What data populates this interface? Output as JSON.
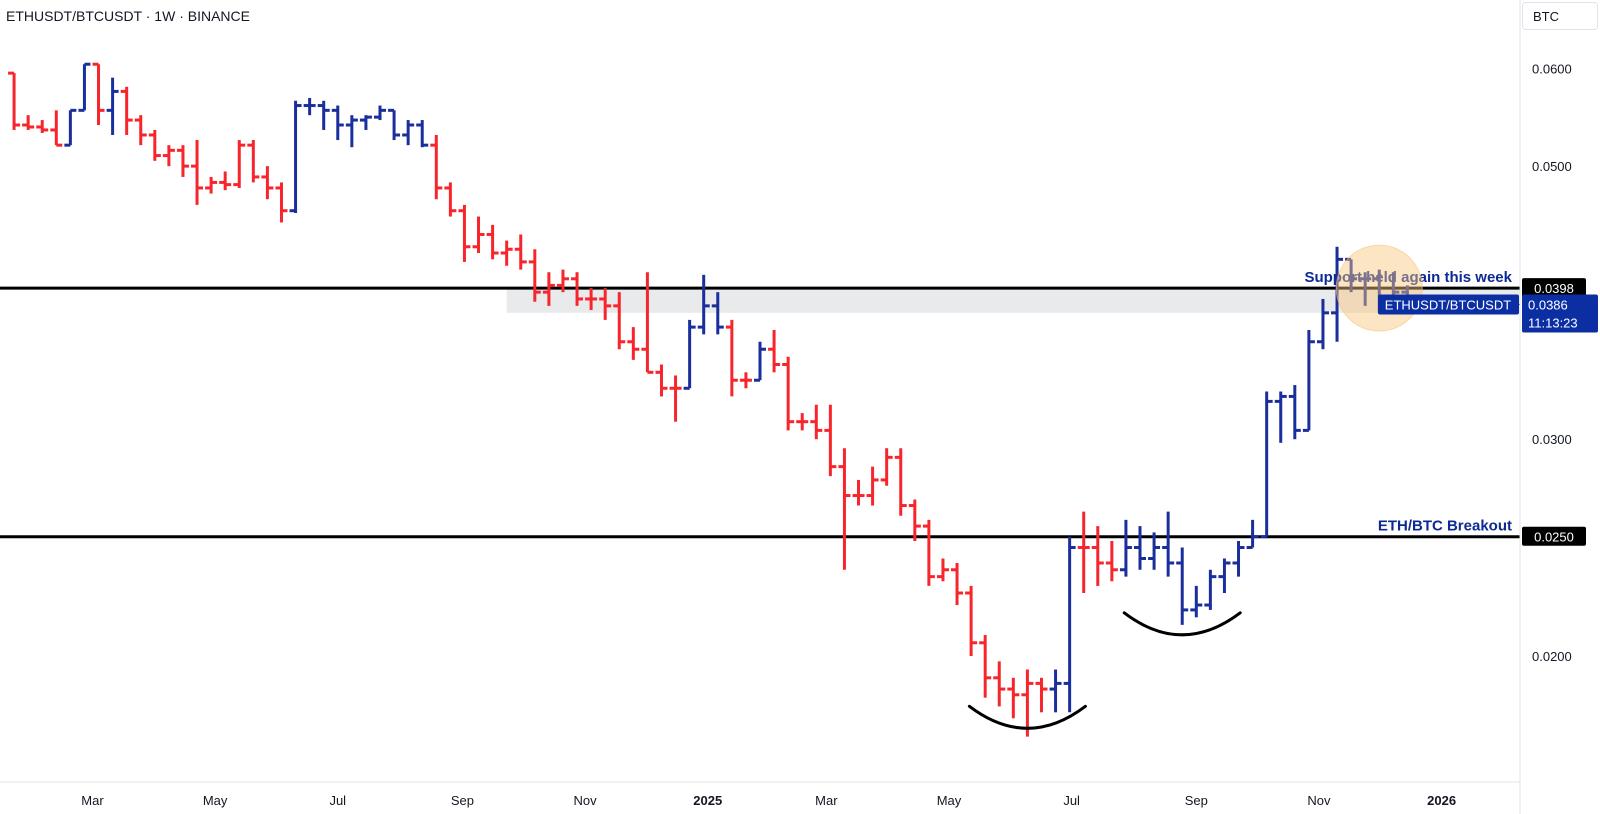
{
  "header": {
    "title": "ETHUSDT/BTCUSDT · 1W · BINANCE",
    "currency": "BTC"
  },
  "colors": {
    "up": "#1a2e9c",
    "down": "#f7252c",
    "level_line": "#000000",
    "support_zone": "#e9eaec",
    "highlight": "#f8c67a",
    "annotation_text": "#0d2a94",
    "price_badge": "#0b2fa3"
  },
  "chart_data": {
    "type": "ohlc",
    "title": "ETHUSDT/BTCUSDT · 1W · BINANCE",
    "xlabel": "",
    "ylabel": "",
    "x_axis": {
      "ticks": [
        "Mar",
        "May",
        "Jul",
        "Sep",
        "Nov",
        "2025",
        "Mar",
        "May",
        "Jul",
        "Sep",
        "Nov",
        "2026"
      ],
      "bold_ticks": [
        "2025",
        "2026"
      ],
      "range": [
        "2024-01-15",
        "2026-02-09"
      ]
    },
    "y_axis": {
      "scale": "log",
      "range": [
        0.0158,
        0.0645
      ],
      "ticks": [
        "0.0600",
        "0.0500",
        "0.0300",
        "0.0200"
      ]
    },
    "grid": false,
    "bars": [
      {
        "date": "2024-01-22",
        "o": 0.0595,
        "h": 0.0595,
        "l": 0.0535,
        "c": 0.054,
        "dir": "down"
      },
      {
        "date": "2024-01-29",
        "o": 0.054,
        "h": 0.055,
        "l": 0.0535,
        "c": 0.0538,
        "dir": "down"
      },
      {
        "date": "2024-02-05",
        "o": 0.0538,
        "h": 0.0545,
        "l": 0.0532,
        "c": 0.0535,
        "dir": "down"
      },
      {
        "date": "2024-02-12",
        "o": 0.0535,
        "h": 0.0555,
        "l": 0.052,
        "c": 0.052,
        "dir": "down"
      },
      {
        "date": "2024-02-19",
        "o": 0.052,
        "h": 0.0555,
        "l": 0.052,
        "c": 0.0555,
        "dir": "up"
      },
      {
        "date": "2024-02-26",
        "o": 0.0555,
        "h": 0.0605,
        "l": 0.0555,
        "c": 0.0605,
        "dir": "up"
      },
      {
        "date": "2024-03-04",
        "o": 0.0605,
        "h": 0.0605,
        "l": 0.054,
        "c": 0.0555,
        "dir": "down"
      },
      {
        "date": "2024-03-11",
        "o": 0.0555,
        "h": 0.059,
        "l": 0.053,
        "c": 0.0575,
        "dir": "up"
      },
      {
        "date": "2024-03-18",
        "o": 0.0575,
        "h": 0.058,
        "l": 0.053,
        "c": 0.0545,
        "dir": "down"
      },
      {
        "date": "2024-03-25",
        "o": 0.0545,
        "h": 0.055,
        "l": 0.052,
        "c": 0.053,
        "dir": "down"
      },
      {
        "date": "2024-04-01",
        "o": 0.053,
        "h": 0.0535,
        "l": 0.0505,
        "c": 0.051,
        "dir": "down"
      },
      {
        "date": "2024-04-08",
        "o": 0.051,
        "h": 0.052,
        "l": 0.05,
        "c": 0.0515,
        "dir": "down"
      },
      {
        "date": "2024-04-15",
        "o": 0.0515,
        "h": 0.052,
        "l": 0.049,
        "c": 0.05,
        "dir": "down"
      },
      {
        "date": "2024-04-22",
        "o": 0.05,
        "h": 0.0525,
        "l": 0.0465,
        "c": 0.048,
        "dir": "down"
      },
      {
        "date": "2024-04-29",
        "o": 0.048,
        "h": 0.049,
        "l": 0.0475,
        "c": 0.0485,
        "dir": "down"
      },
      {
        "date": "2024-05-06",
        "o": 0.0485,
        "h": 0.0495,
        "l": 0.0478,
        "c": 0.0483,
        "dir": "down"
      },
      {
        "date": "2024-05-13",
        "o": 0.0483,
        "h": 0.0525,
        "l": 0.048,
        "c": 0.052,
        "dir": "down"
      },
      {
        "date": "2024-05-20",
        "o": 0.052,
        "h": 0.0525,
        "l": 0.0485,
        "c": 0.049,
        "dir": "down"
      },
      {
        "date": "2024-05-27",
        "o": 0.049,
        "h": 0.05,
        "l": 0.047,
        "c": 0.048,
        "dir": "down"
      },
      {
        "date": "2024-06-03",
        "o": 0.048,
        "h": 0.0485,
        "l": 0.045,
        "c": 0.046,
        "dir": "down"
      },
      {
        "date": "2024-06-10",
        "o": 0.046,
        "h": 0.0565,
        "l": 0.0458,
        "c": 0.056,
        "dir": "up"
      },
      {
        "date": "2024-06-17",
        "o": 0.056,
        "h": 0.0568,
        "l": 0.055,
        "c": 0.056,
        "dir": "up"
      },
      {
        "date": "2024-06-24",
        "o": 0.056,
        "h": 0.0565,
        "l": 0.0535,
        "c": 0.0555,
        "dir": "up"
      },
      {
        "date": "2024-07-01",
        "o": 0.0555,
        "h": 0.056,
        "l": 0.0525,
        "c": 0.054,
        "dir": "up"
      },
      {
        "date": "2024-07-08",
        "o": 0.054,
        "h": 0.055,
        "l": 0.0518,
        "c": 0.0545,
        "dir": "up"
      },
      {
        "date": "2024-07-15",
        "o": 0.0545,
        "h": 0.055,
        "l": 0.0535,
        "c": 0.0548,
        "dir": "up"
      },
      {
        "date": "2024-07-22",
        "o": 0.0548,
        "h": 0.056,
        "l": 0.0545,
        "c": 0.0555,
        "dir": "up"
      },
      {
        "date": "2024-07-29",
        "o": 0.0555,
        "h": 0.0555,
        "l": 0.0525,
        "c": 0.053,
        "dir": "up"
      },
      {
        "date": "2024-08-05",
        "o": 0.053,
        "h": 0.0545,
        "l": 0.052,
        "c": 0.054,
        "dir": "up"
      },
      {
        "date": "2024-08-12",
        "o": 0.054,
        "h": 0.0545,
        "l": 0.0518,
        "c": 0.052,
        "dir": "up"
      },
      {
        "date": "2024-08-19",
        "o": 0.052,
        "h": 0.053,
        "l": 0.047,
        "c": 0.048,
        "dir": "down"
      },
      {
        "date": "2024-08-26",
        "o": 0.048,
        "h": 0.0485,
        "l": 0.0455,
        "c": 0.046,
        "dir": "down"
      },
      {
        "date": "2024-09-02",
        "o": 0.046,
        "h": 0.0465,
        "l": 0.0418,
        "c": 0.043,
        "dir": "down"
      },
      {
        "date": "2024-09-09",
        "o": 0.043,
        "h": 0.0455,
        "l": 0.0425,
        "c": 0.044,
        "dir": "down"
      },
      {
        "date": "2024-09-16",
        "o": 0.044,
        "h": 0.0448,
        "l": 0.042,
        "c": 0.0425,
        "dir": "down"
      },
      {
        "date": "2024-09-23",
        "o": 0.0425,
        "h": 0.0435,
        "l": 0.0415,
        "c": 0.0428,
        "dir": "down"
      },
      {
        "date": "2024-09-30",
        "o": 0.0428,
        "h": 0.044,
        "l": 0.0412,
        "c": 0.0418,
        "dir": "down"
      },
      {
        "date": "2024-10-07",
        "o": 0.0418,
        "h": 0.0428,
        "l": 0.0388,
        "c": 0.0395,
        "dir": "down"
      },
      {
        "date": "2024-10-14",
        "o": 0.0395,
        "h": 0.041,
        "l": 0.0385,
        "c": 0.04,
        "dir": "down"
      },
      {
        "date": "2024-10-21",
        "o": 0.04,
        "h": 0.0412,
        "l": 0.0395,
        "c": 0.0405,
        "dir": "down"
      },
      {
        "date": "2024-10-28",
        "o": 0.0405,
        "h": 0.041,
        "l": 0.0385,
        "c": 0.039,
        "dir": "down"
      },
      {
        "date": "2024-11-04",
        "o": 0.039,
        "h": 0.0398,
        "l": 0.0382,
        "c": 0.039,
        "dir": "down"
      },
      {
        "date": "2024-11-11",
        "o": 0.039,
        "h": 0.0398,
        "l": 0.0375,
        "c": 0.0385,
        "dir": "down"
      },
      {
        "date": "2024-11-18",
        "o": 0.0385,
        "h": 0.0395,
        "l": 0.0355,
        "c": 0.036,
        "dir": "down"
      },
      {
        "date": "2024-11-25",
        "o": 0.036,
        "h": 0.037,
        "l": 0.0348,
        "c": 0.0355,
        "dir": "down"
      },
      {
        "date": "2024-12-02",
        "o": 0.0355,
        "h": 0.041,
        "l": 0.034,
        "c": 0.034,
        "dir": "down"
      },
      {
        "date": "2024-12-09",
        "o": 0.034,
        "h": 0.0345,
        "l": 0.0325,
        "c": 0.033,
        "dir": "down"
      },
      {
        "date": "2024-12-16",
        "o": 0.033,
        "h": 0.0338,
        "l": 0.031,
        "c": 0.033,
        "dir": "down"
      },
      {
        "date": "2024-12-23",
        "o": 0.033,
        "h": 0.0375,
        "l": 0.033,
        "c": 0.037,
        "dir": "up"
      },
      {
        "date": "2024-12-30",
        "o": 0.037,
        "h": 0.0408,
        "l": 0.0365,
        "c": 0.0385,
        "dir": "up"
      },
      {
        "date": "2025-01-06",
        "o": 0.0385,
        "h": 0.0395,
        "l": 0.0365,
        "c": 0.037,
        "dir": "up"
      },
      {
        "date": "2025-01-13",
        "o": 0.037,
        "h": 0.0375,
        "l": 0.0325,
        "c": 0.0335,
        "dir": "down"
      },
      {
        "date": "2025-01-20",
        "o": 0.0335,
        "h": 0.034,
        "l": 0.033,
        "c": 0.0335,
        "dir": "down"
      },
      {
        "date": "2025-01-27",
        "o": 0.0335,
        "h": 0.036,
        "l": 0.0335,
        "c": 0.0355,
        "dir": "up"
      },
      {
        "date": "2025-02-03",
        "o": 0.0355,
        "h": 0.0368,
        "l": 0.034,
        "c": 0.0345,
        "dir": "down"
      },
      {
        "date": "2025-02-10",
        "o": 0.0345,
        "h": 0.035,
        "l": 0.0305,
        "c": 0.031,
        "dir": "down"
      },
      {
        "date": "2025-02-17",
        "o": 0.031,
        "h": 0.0315,
        "l": 0.0305,
        "c": 0.031,
        "dir": "down"
      },
      {
        "date": "2025-02-24",
        "o": 0.031,
        "h": 0.032,
        "l": 0.03,
        "c": 0.0305,
        "dir": "down"
      },
      {
        "date": "2025-03-03",
        "o": 0.0305,
        "h": 0.032,
        "l": 0.028,
        "c": 0.0285,
        "dir": "down"
      },
      {
        "date": "2025-03-10",
        "o": 0.0285,
        "h": 0.0295,
        "l": 0.0235,
        "c": 0.027,
        "dir": "down"
      },
      {
        "date": "2025-03-17",
        "o": 0.027,
        "h": 0.0278,
        "l": 0.0265,
        "c": 0.027,
        "dir": "down"
      },
      {
        "date": "2025-03-24",
        "o": 0.027,
        "h": 0.0285,
        "l": 0.0265,
        "c": 0.0278,
        "dir": "down"
      },
      {
        "date": "2025-03-31",
        "o": 0.0278,
        "h": 0.0295,
        "l": 0.0275,
        "c": 0.029,
        "dir": "down"
      },
      {
        "date": "2025-04-07",
        "o": 0.029,
        "h": 0.0295,
        "l": 0.026,
        "c": 0.0265,
        "dir": "down"
      },
      {
        "date": "2025-04-14",
        "o": 0.0265,
        "h": 0.0268,
        "l": 0.0248,
        "c": 0.0255,
        "dir": "down"
      },
      {
        "date": "2025-04-21",
        "o": 0.0255,
        "h": 0.0258,
        "l": 0.0228,
        "c": 0.0232,
        "dir": "down"
      },
      {
        "date": "2025-04-28",
        "o": 0.0232,
        "h": 0.024,
        "l": 0.023,
        "c": 0.0235,
        "dir": "down"
      },
      {
        "date": "2025-05-05",
        "o": 0.0235,
        "h": 0.0238,
        "l": 0.022,
        "c": 0.0225,
        "dir": "down"
      },
      {
        "date": "2025-05-12",
        "o": 0.0225,
        "h": 0.0228,
        "l": 0.02,
        "c": 0.0205,
        "dir": "down"
      },
      {
        "date": "2025-05-19",
        "o": 0.0205,
        "h": 0.0208,
        "l": 0.0185,
        "c": 0.0192,
        "dir": "down"
      },
      {
        "date": "2025-05-26",
        "o": 0.0192,
        "h": 0.0198,
        "l": 0.0182,
        "c": 0.0188,
        "dir": "down"
      },
      {
        "date": "2025-06-02",
        "o": 0.0188,
        "h": 0.0192,
        "l": 0.0178,
        "c": 0.0186,
        "dir": "down"
      },
      {
        "date": "2025-06-09",
        "o": 0.0186,
        "h": 0.0195,
        "l": 0.0172,
        "c": 0.019,
        "dir": "down"
      },
      {
        "date": "2025-06-16",
        "o": 0.019,
        "h": 0.0192,
        "l": 0.018,
        "c": 0.0188,
        "dir": "down"
      },
      {
        "date": "2025-06-23",
        "o": 0.0188,
        "h": 0.0195,
        "l": 0.018,
        "c": 0.019,
        "dir": "up"
      },
      {
        "date": "2025-06-30",
        "o": 0.019,
        "h": 0.025,
        "l": 0.018,
        "c": 0.0245,
        "dir": "up"
      },
      {
        "date": "2025-07-07",
        "o": 0.0245,
        "h": 0.0262,
        "l": 0.0225,
        "c": 0.0245,
        "dir": "down"
      },
      {
        "date": "2025-07-14",
        "o": 0.0245,
        "h": 0.0255,
        "l": 0.0228,
        "c": 0.0238,
        "dir": "down"
      },
      {
        "date": "2025-07-21",
        "o": 0.0238,
        "h": 0.0248,
        "l": 0.023,
        "c": 0.0235,
        "dir": "down"
      },
      {
        "date": "2025-07-28",
        "o": 0.0235,
        "h": 0.0258,
        "l": 0.0232,
        "c": 0.0245,
        "dir": "up"
      },
      {
        "date": "2025-08-04",
        "o": 0.0245,
        "h": 0.0255,
        "l": 0.0235,
        "c": 0.024,
        "dir": "up"
      },
      {
        "date": "2025-08-11",
        "o": 0.024,
        "h": 0.0252,
        "l": 0.0235,
        "c": 0.0245,
        "dir": "up"
      },
      {
        "date": "2025-08-18",
        "o": 0.0245,
        "h": 0.0262,
        "l": 0.0232,
        "c": 0.0238,
        "dir": "up"
      },
      {
        "date": "2025-08-25",
        "o": 0.0238,
        "h": 0.0245,
        "l": 0.0212,
        "c": 0.0218,
        "dir": "up"
      },
      {
        "date": "2025-09-01",
        "o": 0.0218,
        "h": 0.0228,
        "l": 0.0215,
        "c": 0.022,
        "dir": "up"
      },
      {
        "date": "2025-09-08",
        "o": 0.022,
        "h": 0.0235,
        "l": 0.0218,
        "c": 0.0232,
        "dir": "up"
      },
      {
        "date": "2025-09-15",
        "o": 0.0232,
        "h": 0.024,
        "l": 0.0225,
        "c": 0.0238,
        "dir": "up"
      },
      {
        "date": "2025-09-22",
        "o": 0.0238,
        "h": 0.0248,
        "l": 0.0232,
        "c": 0.0245,
        "dir": "up"
      },
      {
        "date": "2025-09-29",
        "o": 0.0245,
        "h": 0.0258,
        "l": 0.0245,
        "c": 0.025,
        "dir": "up"
      },
      {
        "date": "2025-10-06",
        "o": 0.025,
        "h": 0.0328,
        "l": 0.025,
        "c": 0.0322,
        "dir": "up"
      },
      {
        "date": "2025-10-13",
        "o": 0.0322,
        "h": 0.0328,
        "l": 0.0298,
        "c": 0.0325,
        "dir": "up"
      },
      {
        "date": "2025-10-20",
        "o": 0.0325,
        "h": 0.0332,
        "l": 0.03,
        "c": 0.0305,
        "dir": "up"
      },
      {
        "date": "2025-10-27",
        "o": 0.0305,
        "h": 0.0368,
        "l": 0.0305,
        "c": 0.036,
        "dir": "up"
      },
      {
        "date": "2025-11-03",
        "o": 0.036,
        "h": 0.039,
        "l": 0.0355,
        "c": 0.038,
        "dir": "up"
      },
      {
        "date": "2025-11-10",
        "o": 0.038,
        "h": 0.043,
        "l": 0.036,
        "c": 0.042,
        "dir": "up"
      },
      {
        "date": "2025-11-17",
        "o": 0.042,
        "h": 0.0418,
        "l": 0.0395,
        "c": 0.0405,
        "dir": "up"
      },
      {
        "date": "2025-11-24",
        "o": 0.0405,
        "h": 0.041,
        "l": 0.0385,
        "c": 0.0405,
        "dir": "up"
      },
      {
        "date": "2025-12-01",
        "o": 0.0405,
        "h": 0.0412,
        "l": 0.038,
        "c": 0.039,
        "dir": "up"
      },
      {
        "date": "2025-12-08",
        "o": 0.039,
        "h": 0.041,
        "l": 0.0385,
        "c": 0.0395,
        "dir": "up"
      },
      {
        "date": "2025-12-15",
        "o": 0.0395,
        "h": 0.04,
        "l": 0.0382,
        "c": 0.0386,
        "dir": "up"
      }
    ],
    "horizontal_levels": [
      {
        "value": 0.0398,
        "label": "Support held again this week",
        "badge": "0.0398"
      },
      {
        "value": 0.025,
        "label": "ETH/BTC Breakout",
        "badge": "0.0250"
      }
    ],
    "support_zone": [
      0.038,
      0.0398
    ],
    "current_price": {
      "symbol": "ETHUSDT/BTCUSDT",
      "value": "0.0386",
      "countdown": "11:13:23"
    },
    "annotations": [
      {
        "type": "arc",
        "label": "",
        "date": "2025-06-09",
        "value": 0.0178
      },
      {
        "type": "arc",
        "label": "",
        "date": "2025-08-25",
        "value": 0.0212
      },
      {
        "type": "circle",
        "label": "",
        "date": "2025-12-01",
        "value": 0.0398
      }
    ]
  }
}
